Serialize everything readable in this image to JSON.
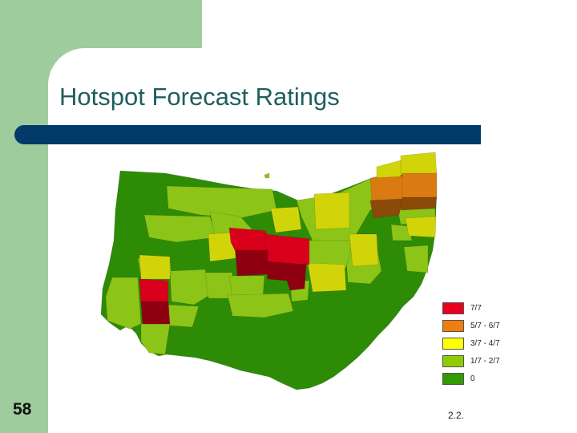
{
  "slide": {
    "title": "Hotspot Forecast Ratings",
    "slide_number": "58",
    "section_number": "2.2."
  },
  "colors": {
    "theme_green": "#9fcc9d",
    "title_color": "#1f5e5e",
    "title_rule": "#003a6b"
  },
  "map": {
    "region": "Ohio",
    "counties": [
      {
        "rating": "0",
        "color": "#2e8b06"
      },
      {
        "rating": "1/7 - 2/7",
        "color": "#8cc418"
      },
      {
        "rating": "3/7 - 4/7",
        "color": "#d2d40a"
      },
      {
        "rating": "5/7 - 6/7",
        "color": "#d97a12"
      },
      {
        "rating": "7/7",
        "color": "#d8001a"
      }
    ]
  },
  "legend": {
    "items": [
      {
        "label": "7/7",
        "color": "#e8001e"
      },
      {
        "label": "5/7 - 6/7",
        "color": "#ef7d10"
      },
      {
        "label": "3/7 - 4/7",
        "color": "#ffff00"
      },
      {
        "label": "1/7 - 2/7",
        "color": "#90cc00"
      },
      {
        "label": "0",
        "color": "#339a00"
      }
    ]
  }
}
